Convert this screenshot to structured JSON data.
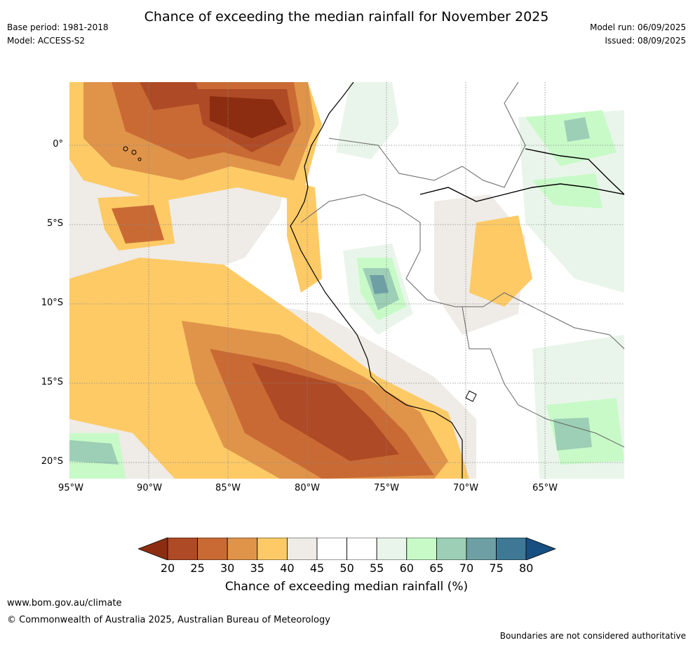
{
  "header": {
    "title": "Chance of exceeding the median rainfall for November 2025",
    "base_period": "Base period: 1981-2018",
    "model": "Model: ACCESS-S2",
    "model_run": "Model run: 06/09/2025",
    "issued": "Issued: 08/09/2025"
  },
  "map": {
    "lon_labels": [
      "95°W",
      "90°W",
      "85°W",
      "80°W",
      "75°W",
      "70°W",
      "65°W"
    ],
    "lat_labels": [
      "0°",
      "5°S",
      "10°S",
      "15°S",
      "20°S"
    ]
  },
  "colorbar": {
    "ticks": [
      "20",
      "25",
      "30",
      "35",
      "40",
      "45",
      "50",
      "55",
      "60",
      "65",
      "70",
      "75",
      "80"
    ],
    "colors": [
      "#8c2d12",
      "#ae4a25",
      "#c96a34",
      "#e0944a",
      "#fdca66",
      "#efebe6",
      "#ffffff",
      "#ffffff",
      "#e9f5ea",
      "#c8fac8",
      "#9ccfb5",
      "#6e9fa4",
      "#3e7895",
      "#174f82"
    ],
    "title": "Chance of exceeding median rainfall (%)"
  },
  "footer": {
    "website": "www.bom.gov.au/climate",
    "copyright": "© Commonwealth of Australia 2025, Australian Bureau of Meteorology",
    "disclaimer": "Boundaries are not considered authoritative"
  }
}
